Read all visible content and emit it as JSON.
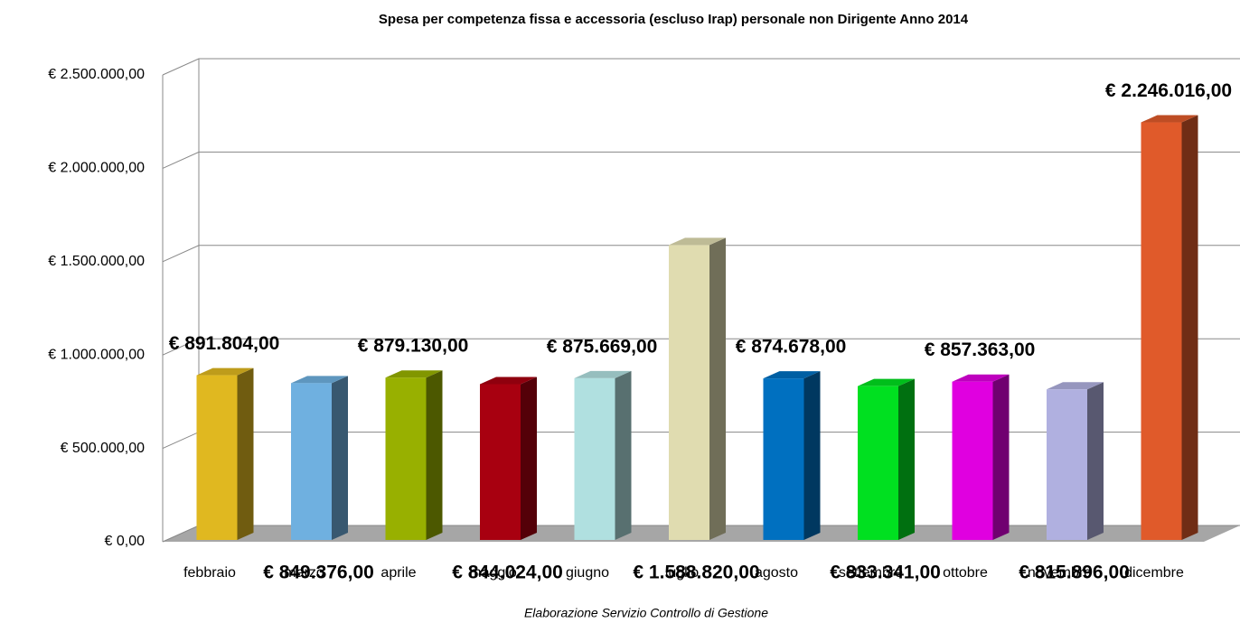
{
  "chart_data": {
    "type": "bar3d",
    "title": "Spesa per competenza fissa e accessoria (escluso Irap) personale non Dirigente Anno 2014",
    "caption": "Elaborazione Servizio Controllo di Gestione",
    "categories": [
      "febbraio",
      "marzo",
      "aprile",
      "maggio",
      "giugno",
      "luglio",
      "agosto",
      "settembre",
      "ottobre",
      "novembre",
      "dicembre"
    ],
    "values": [
      891804,
      849376,
      879130,
      844024,
      875669,
      1588820,
      874678,
      833341,
      857363,
      815896,
      2246016
    ],
    "value_labels": [
      "€ 891.804,00",
      "€ 849.376,00",
      "€ 879.130,00",
      "€ 844.024,00",
      "€ 875.669,00",
      "€ 1.588.820,00",
      "€ 874.678,00",
      "€ 833.341,00",
      "€ 857.363,00",
      "€ 815.896,00",
      "€ 2.246.016,00"
    ],
    "colors": [
      "#e0b820",
      "#6fb0e0",
      "#98b000",
      "#a80010",
      "#b0e0e0",
      "#e0dcb0",
      "#0070c0",
      "#00e020",
      "#e000e0",
      "#b0b0e0",
      "#e05a2a"
    ],
    "ylim": [
      0,
      2500000
    ],
    "yticks": [
      {
        "value": 0,
        "label": "€ 0,00"
      },
      {
        "value": 500000,
        "label": "€ 500.000,00"
      },
      {
        "value": 1000000,
        "label": "€ 1.000.000,00"
      },
      {
        "value": 1500000,
        "label": "€ 1.500.000,00"
      },
      {
        "value": 2000000,
        "label": "€ 2.000.000,00"
      },
      {
        "value": 2500000,
        "label": "€ 2.500.000,00"
      }
    ],
    "grid": true
  }
}
